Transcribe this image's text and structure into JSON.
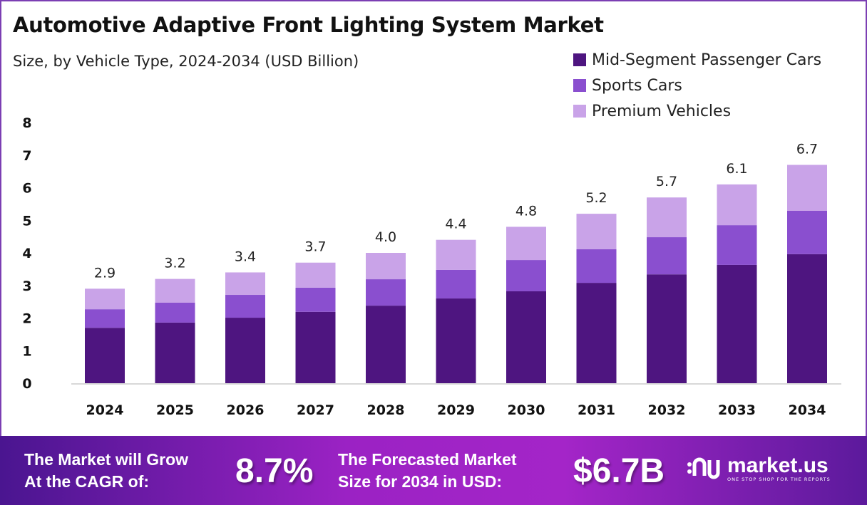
{
  "chart_data": {
    "type": "bar",
    "stacked": true,
    "title": "Automotive Adaptive Front Lighting System Market",
    "subtitle": "Size, by Vehicle Type, 2024-2034 (USD Billion)",
    "categories": [
      "2024",
      "2025",
      "2026",
      "2027",
      "2028",
      "2029",
      "2030",
      "2031",
      "2032",
      "2033",
      "2034"
    ],
    "series": [
      {
        "name": "Mid-Segment Passenger Cars",
        "color": "#4e1580",
        "values": [
          1.7,
          1.86,
          2.01,
          2.19,
          2.38,
          2.6,
          2.82,
          3.08,
          3.34,
          3.63,
          3.96
        ]
      },
      {
        "name": "Sports Cars",
        "color": "#8a4fcf",
        "values": [
          0.57,
          0.61,
          0.7,
          0.74,
          0.81,
          0.88,
          0.96,
          1.03,
          1.14,
          1.22,
          1.33
        ]
      },
      {
        "name": "Premium Vehicles",
        "color": "#c9a3e8",
        "values": [
          0.63,
          0.73,
          0.69,
          0.77,
          0.81,
          0.92,
          1.02,
          1.09,
          1.22,
          1.25,
          1.41
        ]
      }
    ],
    "totals": [
      "2.9",
      "3.2",
      "3.4",
      "3.7",
      "4.0",
      "4.4",
      "4.8",
      "5.2",
      "5.7",
      "6.1",
      "6.7"
    ],
    "ylim": [
      0,
      8
    ],
    "yticks": [
      "0",
      "1",
      "2",
      "3",
      "4",
      "5",
      "6",
      "7",
      "8"
    ],
    "grid": false,
    "legend": "top-right"
  },
  "footer": {
    "cagr_label_1": "The Market will Grow",
    "cagr_label_2": "At the CAGR of:",
    "cagr_value": "8.7%",
    "forecast_label_1": "The Forecasted Market",
    "forecast_label_2": "Size for 2034 in USD:",
    "forecast_value": "$6.7B",
    "logo_name": "market.us",
    "logo_tagline": "ONE STOP SHOP FOR THE REPORTS"
  }
}
